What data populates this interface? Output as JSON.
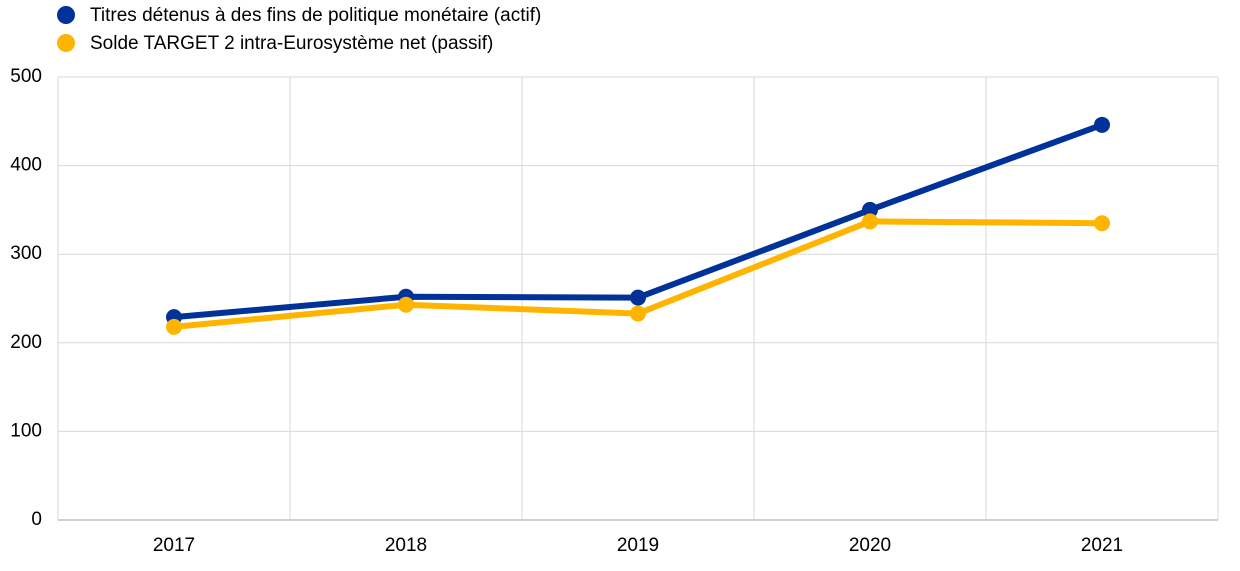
{
  "chart_data": {
    "type": "line",
    "categories": [
      "2017",
      "2018",
      "2019",
      "2020",
      "2021"
    ],
    "series": [
      {
        "name": "Titres détenus à des fins de politique monétaire (actif)",
        "color": "#003299",
        "values": [
          229,
          252,
          251,
          350,
          446
        ]
      },
      {
        "name": "Solde TARGET 2 intra-Eurosystème net (passif)",
        "color": "#ffb400",
        "values": [
          218,
          243,
          233,
          337,
          335
        ]
      }
    ],
    "ylim": [
      0,
      500
    ],
    "yticks": [
      0,
      100,
      200,
      300,
      400,
      500
    ],
    "grid": true,
    "legend": "top-left"
  }
}
